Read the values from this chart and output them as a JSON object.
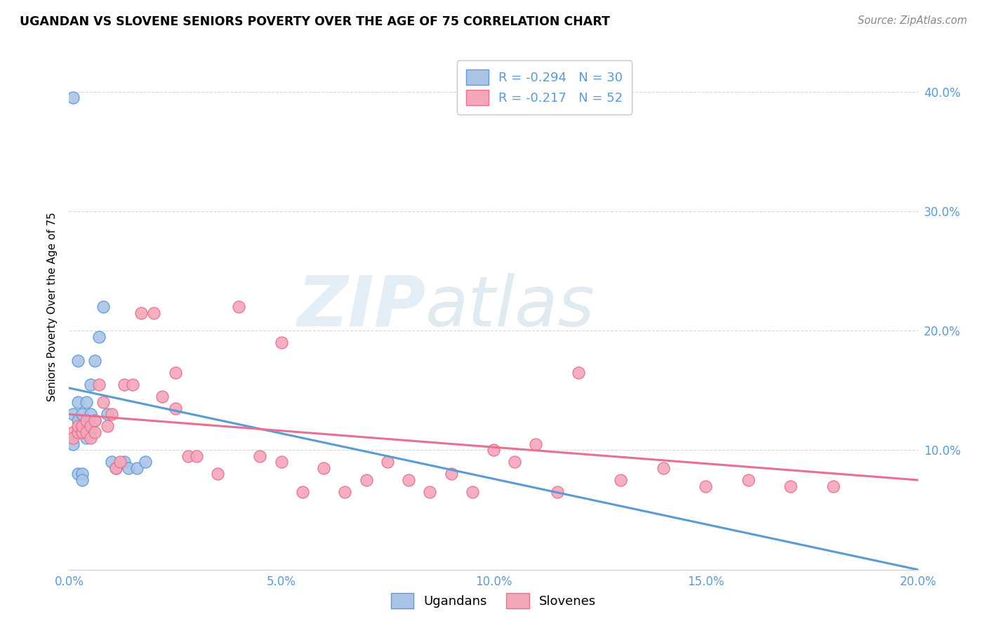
{
  "title": "UGANDAN VS SLOVENE SENIORS POVERTY OVER THE AGE OF 75 CORRELATION CHART",
  "source": "Source: ZipAtlas.com",
  "ylabel": "Seniors Poverty Over the Age of 75",
  "bg_color": "#ffffff",
  "plot_bg_color": "#ffffff",
  "grid_color": "#d8d8d8",
  "ugandan_color": "#aac4e8",
  "slovene_color": "#f4a7b9",
  "ugandan_line_color": "#5b9bd5",
  "slovene_line_color": "#e87090",
  "ugandan_R": -0.294,
  "ugandan_N": 30,
  "slovene_R": -0.217,
  "slovene_N": 52,
  "xlim": [
    0.0,
    0.2
  ],
  "ylim": [
    0.0,
    0.44
  ],
  "xticks": [
    0.0,
    0.05,
    0.1,
    0.15,
    0.2
  ],
  "yticks": [
    0.1,
    0.2,
    0.3,
    0.4
  ],
  "ugandan_x": [
    0.001,
    0.001,
    0.002,
    0.002,
    0.002,
    0.003,
    0.003,
    0.003,
    0.003,
    0.004,
    0.004,
    0.004,
    0.005,
    0.005,
    0.005,
    0.006,
    0.006,
    0.007,
    0.008,
    0.009,
    0.01,
    0.011,
    0.013,
    0.014,
    0.016,
    0.018,
    0.001,
    0.002,
    0.003,
    0.003
  ],
  "ugandan_y": [
    0.395,
    0.13,
    0.175,
    0.14,
    0.125,
    0.12,
    0.13,
    0.115,
    0.115,
    0.14,
    0.12,
    0.11,
    0.155,
    0.13,
    0.115,
    0.175,
    0.125,
    0.195,
    0.22,
    0.13,
    0.09,
    0.085,
    0.09,
    0.085,
    0.085,
    0.09,
    0.105,
    0.08,
    0.08,
    0.075
  ],
  "slovene_x": [
    0.001,
    0.001,
    0.002,
    0.002,
    0.003,
    0.003,
    0.004,
    0.004,
    0.005,
    0.005,
    0.006,
    0.006,
    0.007,
    0.008,
    0.009,
    0.01,
    0.011,
    0.012,
    0.013,
    0.015,
    0.017,
    0.02,
    0.022,
    0.025,
    0.028,
    0.03,
    0.035,
    0.04,
    0.045,
    0.05,
    0.055,
    0.06,
    0.065,
    0.07,
    0.075,
    0.08,
    0.085,
    0.09,
    0.095,
    0.1,
    0.105,
    0.11,
    0.115,
    0.12,
    0.13,
    0.14,
    0.15,
    0.16,
    0.17,
    0.18,
    0.025,
    0.05
  ],
  "slovene_y": [
    0.115,
    0.11,
    0.115,
    0.12,
    0.115,
    0.12,
    0.115,
    0.125,
    0.12,
    0.11,
    0.115,
    0.125,
    0.155,
    0.14,
    0.12,
    0.13,
    0.085,
    0.09,
    0.155,
    0.155,
    0.215,
    0.215,
    0.145,
    0.135,
    0.095,
    0.095,
    0.08,
    0.22,
    0.095,
    0.09,
    0.065,
    0.085,
    0.065,
    0.075,
    0.09,
    0.075,
    0.065,
    0.08,
    0.065,
    0.1,
    0.09,
    0.105,
    0.065,
    0.165,
    0.075,
    0.085,
    0.07,
    0.075,
    0.07,
    0.07,
    0.165,
    0.19
  ],
  "ugandan_trend_x": [
    0.0,
    0.2
  ],
  "ugandan_trend_y": [
    0.152,
    0.0
  ],
  "slovene_trend_x": [
    0.0,
    0.2
  ],
  "slovene_trend_y": [
    0.13,
    0.075
  ]
}
